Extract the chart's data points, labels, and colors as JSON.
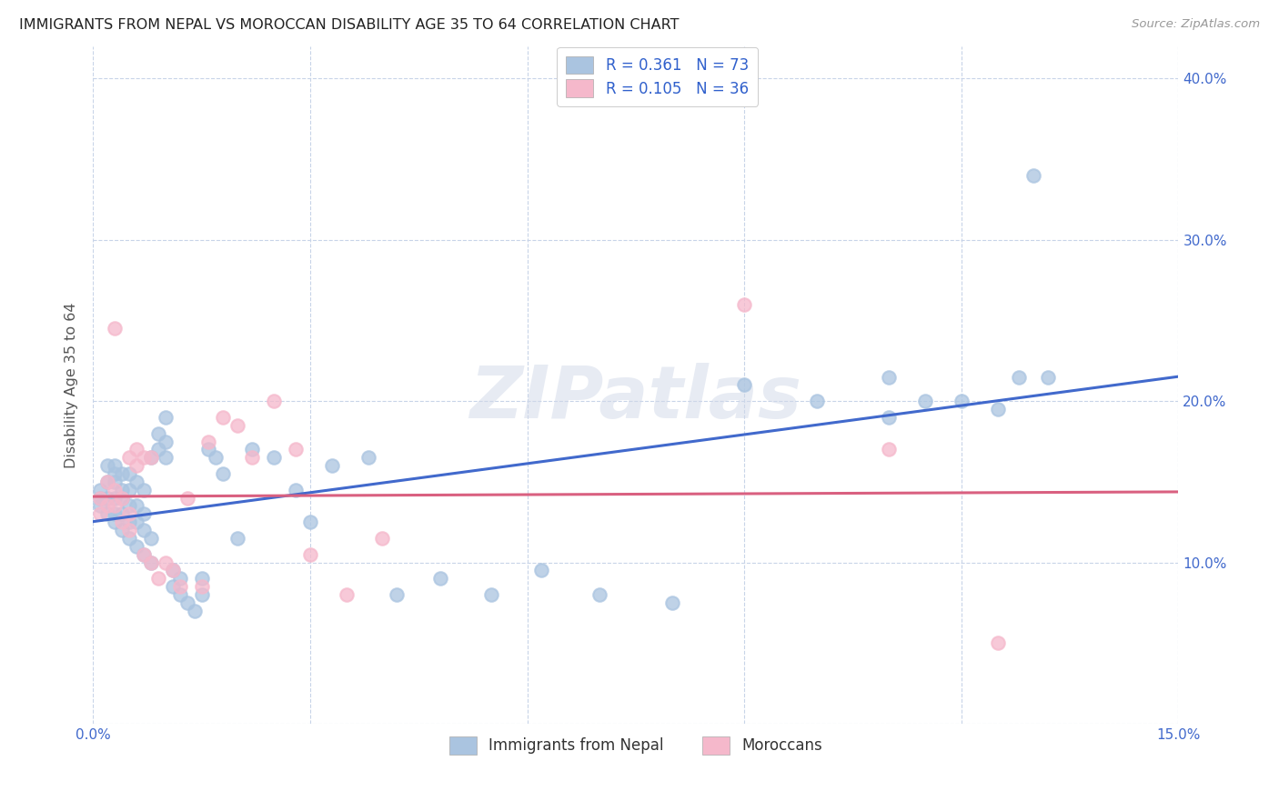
{
  "title": "IMMIGRANTS FROM NEPAL VS MOROCCAN DISABILITY AGE 35 TO 64 CORRELATION CHART",
  "source": "Source: ZipAtlas.com",
  "ylabel": "Disability Age 35 to 64",
  "xlim": [
    0.0,
    0.15
  ],
  "ylim": [
    0.0,
    0.42
  ],
  "xticks": [
    0.0,
    0.03,
    0.06,
    0.09,
    0.12,
    0.15
  ],
  "xticklabels": [
    "0.0%",
    "",
    "",
    "",
    "",
    "15.0%"
  ],
  "yticks": [
    0.0,
    0.1,
    0.2,
    0.3,
    0.4
  ],
  "right_yticklabels": [
    "",
    "10.0%",
    "20.0%",
    "30.0%",
    "40.0%"
  ],
  "legend1_label": "R = 0.361   N = 73",
  "legend2_label": "R = 0.105   N = 36",
  "legend_bottom1": "Immigrants from Nepal",
  "legend_bottom2": "Moroccans",
  "blue_color": "#aac4e0",
  "pink_color": "#f5b8cb",
  "line_blue": "#4169cc",
  "line_pink": "#d96080",
  "watermark": "ZIPatlas",
  "nepal_x": [
    0.001,
    0.001,
    0.001,
    0.002,
    0.002,
    0.002,
    0.002,
    0.003,
    0.003,
    0.003,
    0.003,
    0.003,
    0.003,
    0.004,
    0.004,
    0.004,
    0.004,
    0.004,
    0.005,
    0.005,
    0.005,
    0.005,
    0.005,
    0.006,
    0.006,
    0.006,
    0.006,
    0.007,
    0.007,
    0.007,
    0.007,
    0.008,
    0.008,
    0.008,
    0.009,
    0.009,
    0.01,
    0.01,
    0.01,
    0.011,
    0.011,
    0.012,
    0.012,
    0.013,
    0.014,
    0.015,
    0.015,
    0.016,
    0.017,
    0.018,
    0.02,
    0.022,
    0.025,
    0.028,
    0.03,
    0.033,
    0.038,
    0.042,
    0.048,
    0.055,
    0.062,
    0.07,
    0.08,
    0.09,
    0.1,
    0.11,
    0.11,
    0.115,
    0.12,
    0.125,
    0.128,
    0.13,
    0.132
  ],
  "nepal_y": [
    0.135,
    0.14,
    0.145,
    0.13,
    0.14,
    0.15,
    0.16,
    0.125,
    0.13,
    0.14,
    0.15,
    0.155,
    0.16,
    0.12,
    0.13,
    0.14,
    0.145,
    0.155,
    0.115,
    0.125,
    0.135,
    0.145,
    0.155,
    0.11,
    0.125,
    0.135,
    0.15,
    0.105,
    0.12,
    0.13,
    0.145,
    0.1,
    0.115,
    0.165,
    0.17,
    0.18,
    0.165,
    0.175,
    0.19,
    0.085,
    0.095,
    0.08,
    0.09,
    0.075,
    0.07,
    0.08,
    0.09,
    0.17,
    0.165,
    0.155,
    0.115,
    0.17,
    0.165,
    0.145,
    0.125,
    0.16,
    0.165,
    0.08,
    0.09,
    0.08,
    0.095,
    0.08,
    0.075,
    0.21,
    0.2,
    0.19,
    0.215,
    0.2,
    0.2,
    0.195,
    0.215,
    0.34,
    0.215
  ],
  "moroccan_x": [
    0.001,
    0.001,
    0.002,
    0.002,
    0.003,
    0.003,
    0.003,
    0.004,
    0.004,
    0.005,
    0.005,
    0.005,
    0.006,
    0.006,
    0.007,
    0.007,
    0.008,
    0.008,
    0.009,
    0.01,
    0.011,
    0.012,
    0.013,
    0.015,
    0.016,
    0.018,
    0.02,
    0.022,
    0.025,
    0.028,
    0.03,
    0.035,
    0.04,
    0.09,
    0.11,
    0.125
  ],
  "moroccan_y": [
    0.13,
    0.14,
    0.135,
    0.15,
    0.135,
    0.145,
    0.245,
    0.125,
    0.14,
    0.12,
    0.13,
    0.165,
    0.16,
    0.17,
    0.105,
    0.165,
    0.1,
    0.165,
    0.09,
    0.1,
    0.095,
    0.085,
    0.14,
    0.085,
    0.175,
    0.19,
    0.185,
    0.165,
    0.2,
    0.17,
    0.105,
    0.08,
    0.115,
    0.26,
    0.17,
    0.05
  ]
}
